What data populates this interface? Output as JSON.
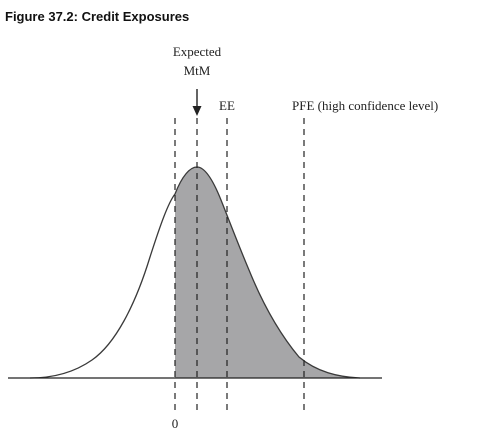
{
  "figure": {
    "title": "Figure 37.2: Credit Exposures"
  },
  "labels": {
    "expected_line1": "Expected",
    "expected_line2": "MtM",
    "ee": "EE",
    "pfe": "PFE (high confidence level)",
    "zero": "0"
  },
  "colors": {
    "shaded_area": "#a6a6a8",
    "curve": "#3a3a3a",
    "lines": "#222222"
  }
}
